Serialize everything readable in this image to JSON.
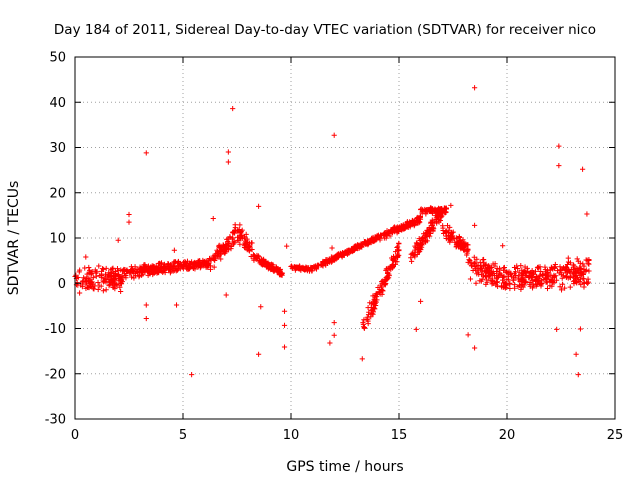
{
  "chart_data": {
    "type": "scatter",
    "title": "Day 184 of 2011, Sidereal Day-to-day VTEC variation (SDTVAR) for receiver nico",
    "xlabel": "GPS time / hours",
    "ylabel": "SDTVAR / TECUs",
    "xlim": [
      0,
      25
    ],
    "ylim": [
      -30,
      50
    ],
    "xticks": [
      0,
      5,
      10,
      15,
      20,
      25
    ],
    "yticks": [
      -30,
      -20,
      -10,
      0,
      10,
      20,
      30,
      40,
      50
    ],
    "grid": true,
    "marker": "+",
    "color": "#ff0000",
    "series": [
      {
        "name": "SDTVAR",
        "outliers": [
          [
            3.3,
            28.8
          ],
          [
            5.4,
            -20.2
          ],
          [
            7.1,
            29.0
          ],
          [
            7.1,
            26.8
          ],
          [
            7.3,
            38.6
          ],
          [
            8.5,
            -15.7
          ],
          [
            8.6,
            -5.2
          ],
          [
            9.7,
            -6.2
          ],
          [
            9.7,
            -9.3
          ],
          [
            9.7,
            -14.1
          ],
          [
            11.9,
            7.8
          ],
          [
            12.0,
            -8.7
          ],
          [
            12.0,
            -11.5
          ],
          [
            12.0,
            32.7
          ],
          [
            11.8,
            -13.2
          ],
          [
            13.3,
            -16.7
          ],
          [
            15.8,
            -10.2
          ],
          [
            18.5,
            43.2
          ],
          [
            18.5,
            12.8
          ],
          [
            18.2,
            -11.4
          ],
          [
            18.5,
            -14.3
          ],
          [
            22.4,
            30.3
          ],
          [
            22.4,
            26.0
          ],
          [
            22.3,
            -10.2
          ],
          [
            23.2,
            -15.7
          ],
          [
            23.3,
            -20.2
          ],
          [
            23.5,
            25.2
          ],
          [
            23.7,
            15.3
          ],
          [
            23.4,
            -10.1
          ],
          [
            2.0,
            9.5
          ],
          [
            2.5,
            15.2
          ],
          [
            2.5,
            13.5
          ],
          [
            3.3,
            -7.8
          ],
          [
            3.3,
            -4.8
          ],
          [
            4.7,
            -4.8
          ],
          [
            4.6,
            7.3
          ],
          [
            6.4,
            14.3
          ],
          [
            7.0,
            -2.6
          ],
          [
            8.5,
            17.0
          ],
          [
            9.8,
            8.2
          ],
          [
            17.4,
            17.2
          ],
          [
            16.0,
            -4.0
          ],
          [
            19.8,
            8.3
          ],
          [
            0.5,
            5.8
          ],
          [
            1.1,
            3.8
          ]
        ],
        "clusters": [
          {
            "x": [
              0.0,
              2.2
            ],
            "center": [
              0.5,
              0.8
            ],
            "spread": 3.2
          },
          {
            "x": [
              2.2,
              4.8
            ],
            "center": [
              2.2,
              3.6
            ],
            "spread": 1.6
          },
          {
            "x": [
              4.8,
              6.2
            ],
            "center": [
              3.6,
              4.2
            ],
            "spread": 1.2
          },
          {
            "x": [
              6.2,
              7.4
            ],
            "center": [
              4.2,
              10.0
            ],
            "spread": 2.2
          },
          {
            "x": [
              7.4,
              8.2
            ],
            "center": [
              12.0,
              7.0
            ],
            "spread": 2.6
          },
          {
            "x": [
              8.2,
              9.6
            ],
            "center": [
              6.0,
              2.0
            ],
            "spread": 1.0
          },
          {
            "x": [
              10.0,
              11.0
            ],
            "center": [
              3.5,
              3.0
            ],
            "spread": 0.6
          },
          {
            "x": [
              11.0,
              14.0
            ],
            "center": [
              3.2,
              10.0
            ],
            "spread": 0.7
          },
          {
            "x": [
              13.3,
              15.0
            ],
            "center": [
              -10.0,
              7.0
            ],
            "spread": 2.5
          },
          {
            "x": [
              14.0,
              16.0
            ],
            "center": [
              10.0,
              14.0
            ],
            "spread": 1.0
          },
          {
            "x": [
              15.5,
              17.0
            ],
            "center": [
              5.0,
              15.5
            ],
            "spread": 2.0
          },
          {
            "x": [
              16.0,
              17.2
            ],
            "center": [
              16.0,
              16.0
            ],
            "spread": 0.8
          },
          {
            "x": [
              17.0,
              18.2
            ],
            "center": [
              12.0,
              7.0
            ],
            "spread": 2.0
          },
          {
            "x": [
              18.2,
              20.0
            ],
            "center": [
              3.5,
              0.5
            ],
            "spread": 3.5
          },
          {
            "x": [
              20.0,
              22.2
            ],
            "center": [
              1.0,
              1.0
            ],
            "spread": 3.2
          },
          {
            "x": [
              22.2,
              23.8
            ],
            "center": [
              2.0,
              2.0
            ],
            "spread": 4.2
          }
        ]
      }
    ]
  }
}
